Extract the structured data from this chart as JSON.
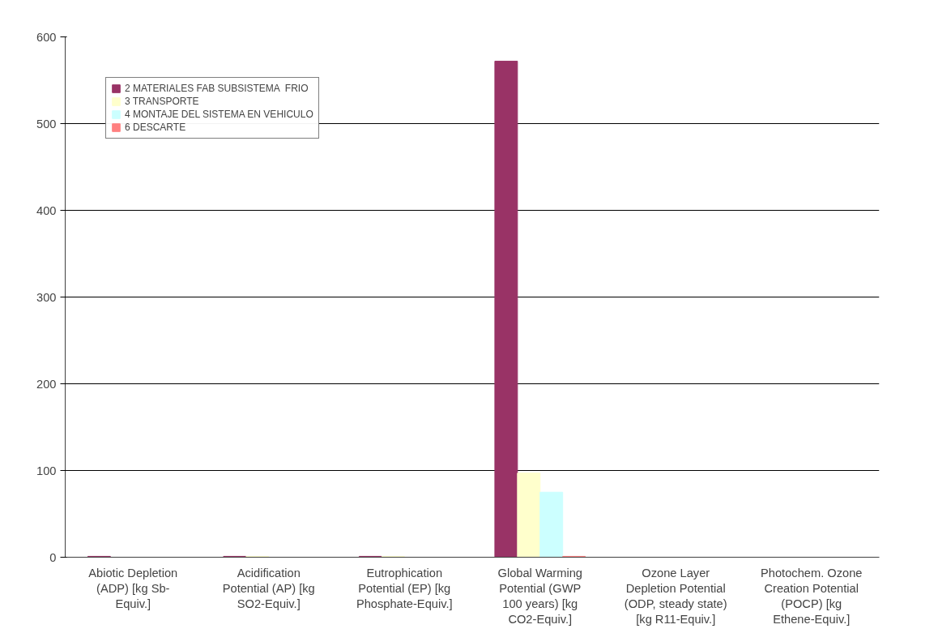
{
  "chart_data": {
    "type": "bar",
    "categories": [
      "Abiotic Depletion\n(ADP) [kg Sb-\nEquiv.]",
      "Acidification\nPotential (AP) [kg\nSO2-Equiv.]",
      "Eutrophication\nPotential (EP) [kg\nPhosphate-Equiv.]",
      "Global Warming\nPotential (GWP\n100 years) [kg\nCO2-Equiv.]",
      "Ozone Layer\nDepletion Potential\n(ODP, steady state)\n[kg R11-Equiv.]",
      "Photochem. Ozone\nCreation Potential\n(POCP) [kg\nEthene-Equiv.]"
    ],
    "series": [
      {
        "name": "2 MATERIALES FAB SUBSISTEMA  FRIO",
        "color": "#993366",
        "values": [
          1,
          1,
          1,
          572,
          0,
          0
        ]
      },
      {
        "name": "3 TRANSPORTE",
        "color": "#ffffcc",
        "values": [
          0,
          1,
          1,
          97,
          0,
          0
        ]
      },
      {
        "name": "4 MONTAJE DEL SISTEMA EN VEHICULO",
        "color": "#ccffff",
        "values": [
          0,
          0,
          0,
          75,
          0,
          0
        ]
      },
      {
        "name": "6 DESCARTE",
        "color": "#ff8080",
        "values": [
          0,
          0,
          0,
          1,
          0,
          0
        ]
      }
    ],
    "ylim": [
      0,
      600
    ],
    "yticks": [
      0,
      100,
      200,
      300,
      400,
      500,
      600
    ],
    "grid": "y",
    "legend": "top left"
  }
}
